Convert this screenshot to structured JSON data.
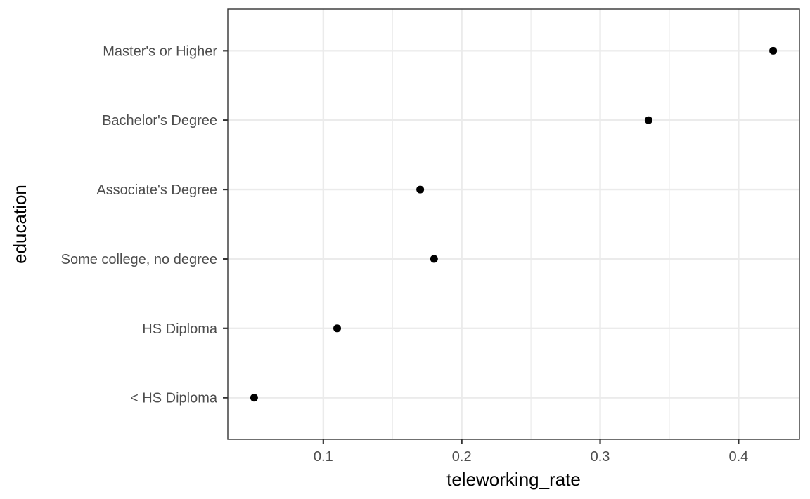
{
  "chart_data": {
    "type": "scatter",
    "xlabel": "teleworking_rate",
    "ylabel": "education",
    "xlim": [
      0.031,
      0.444
    ],
    "x_ticks": [
      0.1,
      0.2,
      0.3,
      0.4
    ],
    "x_tick_labels": [
      "0.1",
      "0.2",
      "0.3",
      "0.4"
    ],
    "x_minor_ticks": [
      0.15,
      0.25,
      0.35
    ],
    "categories": [
      "< HS Diploma",
      "HS Diploma",
      "Some college, no degree",
      "Associate's Degree",
      "Bachelor's Degree",
      "Master's or Higher"
    ],
    "values": [
      0.05,
      0.11,
      0.18,
      0.17,
      0.335,
      0.425
    ],
    "point_color": "#000000",
    "grid": true,
    "legend": "none"
  }
}
